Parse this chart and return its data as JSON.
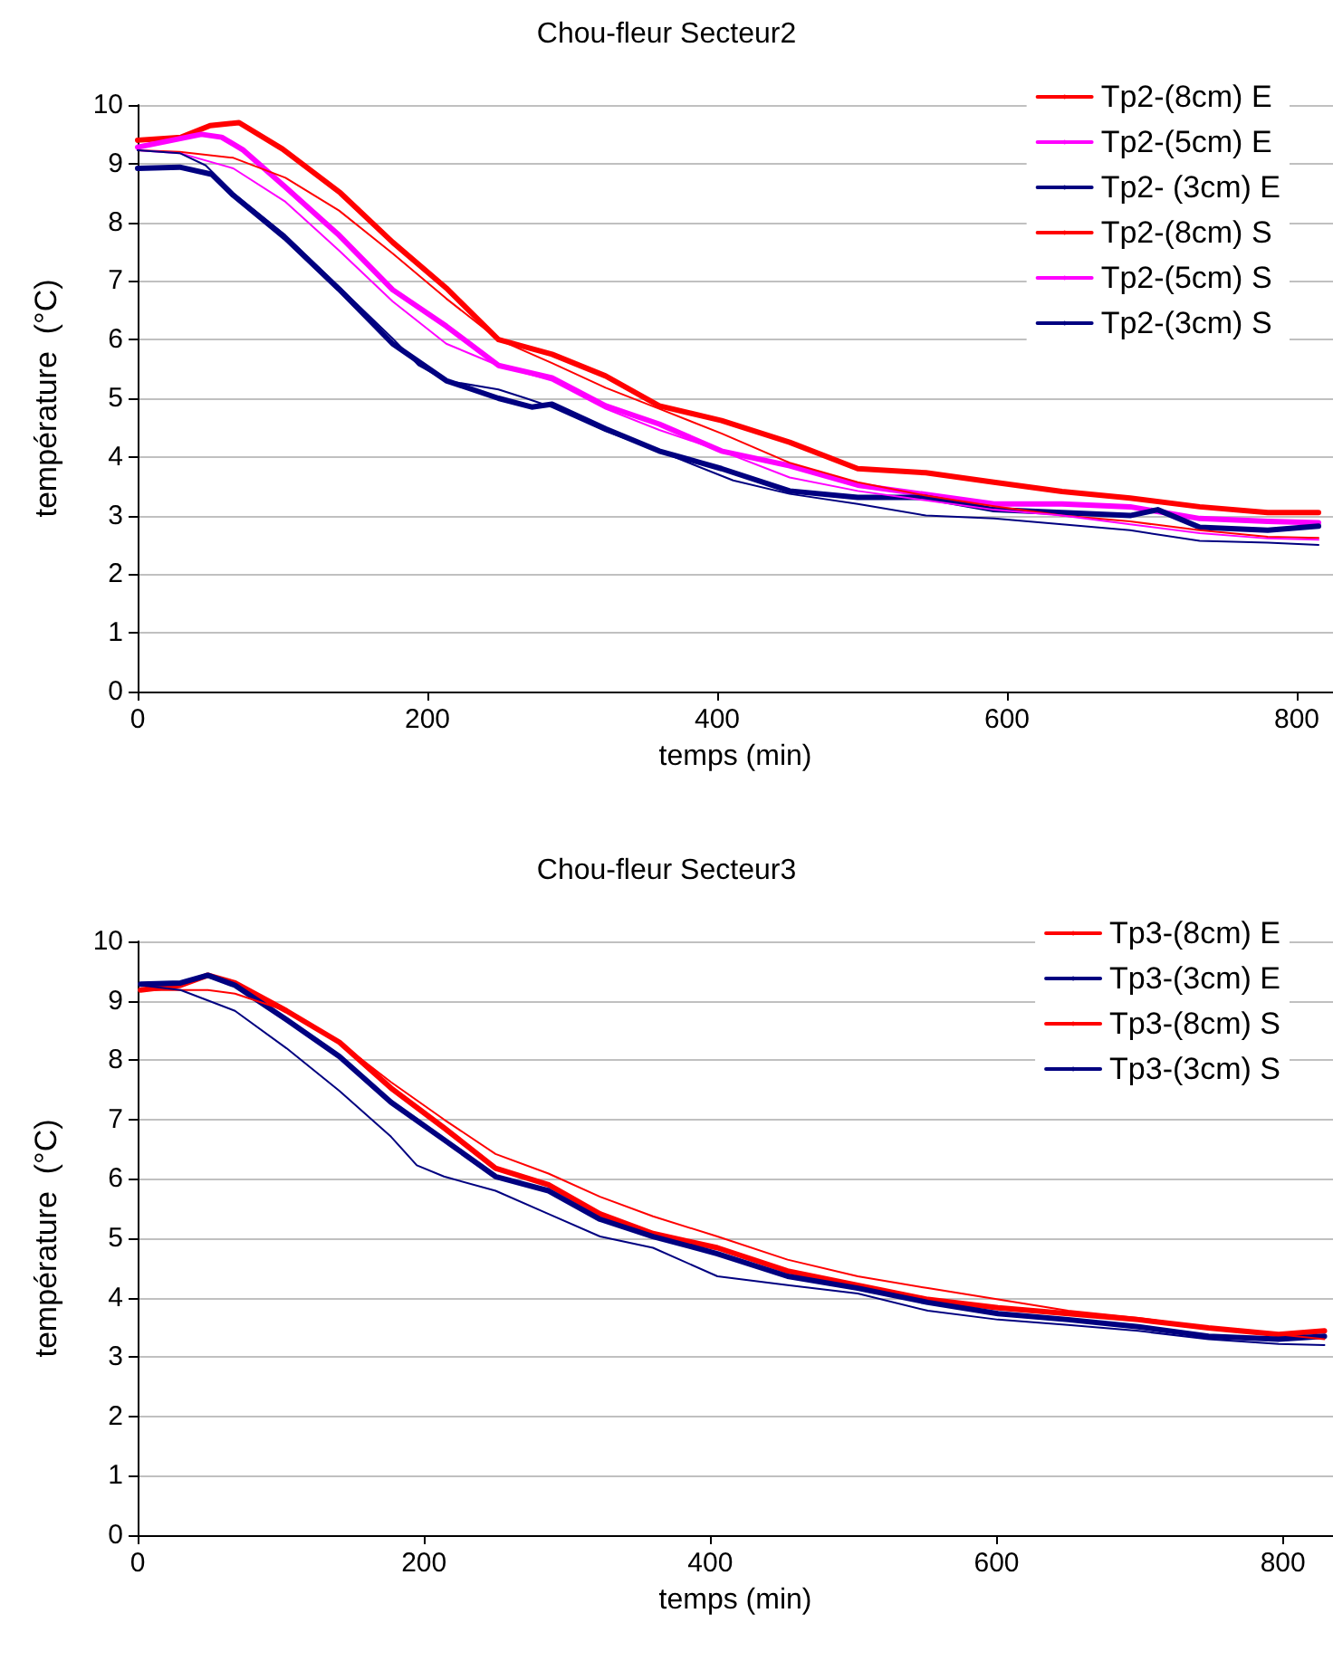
{
  "chart_data": [
    {
      "type": "line",
      "title": "Chou-fleur Secteur2",
      "xlabel": "temps (min)",
      "ylabel": "température  (°C)",
      "xlim": [
        0,
        825
      ],
      "xticks": [
        0,
        200,
        400,
        600,
        800
      ],
      "ylim": [
        0,
        10
      ],
      "yticks": [
        0,
        1,
        2,
        3,
        4,
        5,
        6,
        7,
        8,
        9,
        10
      ],
      "grid": "y",
      "legend": "top right",
      "marker": "none",
      "line_style": "solid",
      "series": [
        {
          "name": "Tp2-(8cm) E",
          "color": "#ff0000",
          "x": [
            0,
            30,
            50,
            70,
            100,
            140,
            176,
            213,
            249,
            286,
            323,
            360,
            403,
            450,
            497,
            544,
            591,
            638,
            685,
            733,
            780,
            815
          ],
          "values": [
            9.4,
            9.45,
            9.65,
            9.7,
            9.25,
            8.5,
            7.66,
            6.88,
            6.0,
            5.75,
            5.38,
            4.87,
            4.62,
            4.25,
            3.8,
            3.73,
            3.57,
            3.41,
            3.3,
            3.15,
            3.05,
            3.05
          ]
        },
        {
          "name": "Tp2-(5cm) E",
          "color": "#ff00ff",
          "x": [
            0,
            44,
            58,
            73,
            102,
            139,
            176,
            213,
            249,
            286,
            323,
            360,
            403,
            450,
            497,
            544,
            591,
            638,
            685,
            733,
            780,
            815
          ],
          "values": [
            9.28,
            9.5,
            9.45,
            9.23,
            8.6,
            7.78,
            6.85,
            6.23,
            5.56,
            5.35,
            4.87,
            4.56,
            4.1,
            3.85,
            3.52,
            3.36,
            3.2,
            3.2,
            3.15,
            2.95,
            2.9,
            2.88
          ]
        },
        {
          "name": "Tp2- (3cm) E",
          "color": "#000080",
          "x": [
            0,
            29,
            51,
            66,
            102,
            139,
            176,
            213,
            249,
            272,
            286,
            323,
            360,
            403,
            450,
            497,
            544,
            591,
            638,
            685,
            704,
            733,
            780,
            815
          ],
          "values": [
            8.92,
            8.94,
            8.82,
            8.46,
            7.73,
            6.86,
            5.93,
            5.3,
            5.0,
            4.85,
            4.9,
            4.48,
            4.1,
            3.8,
            3.42,
            3.31,
            3.31,
            3.1,
            3.05,
            3.0,
            3.1,
            2.8,
            2.75,
            2.82
          ]
        },
        {
          "name": "Tp2-(8cm) S",
          "color": "#ff0000",
          "x": [
            0,
            29,
            66,
            102,
            139,
            176,
            213,
            249,
            286,
            323,
            360,
            403,
            450,
            497,
            544,
            591,
            638,
            685,
            733,
            780,
            815
          ],
          "values": [
            9.23,
            9.2,
            9.1,
            8.76,
            8.2,
            7.47,
            6.7,
            6.0,
            5.6,
            5.18,
            4.82,
            4.4,
            3.9,
            3.57,
            3.34,
            3.16,
            3.0,
            2.9,
            2.75,
            2.64,
            2.62
          ]
        },
        {
          "name": "Tp2-(5cm) S",
          "color": "#ff00ff",
          "x": [
            0,
            29,
            66,
            102,
            139,
            176,
            213,
            249,
            286,
            323,
            360,
            403,
            450,
            497,
            544,
            591,
            638,
            685,
            733,
            780,
            815
          ],
          "values": [
            9.23,
            9.18,
            8.92,
            8.35,
            7.52,
            6.65,
            5.93,
            5.56,
            5.3,
            4.82,
            4.46,
            4.1,
            3.65,
            3.42,
            3.26,
            3.1,
            3.0,
            2.85,
            2.7,
            2.61,
            2.59
          ]
        },
        {
          "name": "Tp2-(3cm) S",
          "color": "#000080",
          "x": [
            0,
            29,
            47,
            66,
            102,
            139,
            176,
            194,
            213,
            249,
            268,
            286,
            323,
            360,
            411,
            450,
            497,
            544,
            591,
            638,
            685,
            733,
            780,
            815
          ],
          "values": [
            9.23,
            9.18,
            8.97,
            8.5,
            7.78,
            6.9,
            6.02,
            5.56,
            5.3,
            5.15,
            5.0,
            4.85,
            4.44,
            4.1,
            3.6,
            3.37,
            3.2,
            3.0,
            2.95,
            2.85,
            2.75,
            2.57,
            2.54,
            2.5
          ]
        }
      ]
    },
    {
      "type": "line",
      "title": "Chou-fleur Secteur3",
      "xlabel": "temps (min)",
      "ylabel": "température  (°C)",
      "xlim": [
        0,
        835
      ],
      "xticks": [
        0,
        200,
        400,
        600,
        800
      ],
      "ylim": [
        0,
        10
      ],
      "yticks": [
        0,
        1,
        2,
        3,
        4,
        5,
        6,
        7,
        8,
        9,
        10
      ],
      "grid": "y",
      "legend": "top right",
      "marker": "none",
      "line_style": "solid",
      "series": [
        {
          "name": "Tp3-(8cm) E",
          "color": "#ff0000",
          "x": [
            2,
            30,
            49,
            68,
            104,
            141,
            177,
            214,
            250,
            287,
            323,
            360,
            405,
            454,
            503,
            552,
            601,
            650,
            699,
            748,
            797,
            829
          ],
          "values": [
            9.18,
            9.26,
            9.43,
            9.3,
            8.83,
            8.3,
            7.53,
            6.86,
            6.18,
            5.9,
            5.41,
            5.08,
            4.84,
            4.45,
            4.21,
            3.97,
            3.83,
            3.73,
            3.63,
            3.49,
            3.38,
            3.44
          ]
        },
        {
          "name": "Tp3-(3cm) E",
          "color": "#000080",
          "x": [
            2,
            30,
            49,
            68,
            104,
            141,
            177,
            214,
            250,
            287,
            323,
            360,
            405,
            454,
            503,
            552,
            601,
            650,
            699,
            748,
            797,
            829
          ],
          "values": [
            9.28,
            9.3,
            9.43,
            9.26,
            8.68,
            8.06,
            7.29,
            6.66,
            6.04,
            5.8,
            5.32,
            5.03,
            4.74,
            4.36,
            4.16,
            3.92,
            3.73,
            3.63,
            3.51,
            3.35,
            3.3,
            3.35
          ]
        },
        {
          "name": "Tp3-(8cm) S",
          "color": "#ff0000",
          "x": [
            2,
            49,
            68,
            104,
            141,
            177,
            214,
            250,
            287,
            323,
            360,
            405,
            454,
            503,
            552,
            601,
            650,
            699,
            748,
            797,
            829
          ],
          "values": [
            9.18,
            9.18,
            9.12,
            8.83,
            8.3,
            7.63,
            7.0,
            6.42,
            6.09,
            5.7,
            5.37,
            5.03,
            4.64,
            4.36,
            4.16,
            3.97,
            3.78,
            3.66,
            3.49,
            3.38,
            3.3
          ]
        },
        {
          "name": "Tp3-(3cm) S",
          "color": "#000080",
          "x": [
            2,
            30,
            68,
            104,
            141,
            177,
            195,
            214,
            250,
            287,
            323,
            360,
            405,
            454,
            503,
            552,
            601,
            650,
            699,
            748,
            797,
            829
          ],
          "values": [
            9.26,
            9.18,
            8.83,
            8.2,
            7.48,
            6.71,
            6.23,
            6.04,
            5.8,
            5.41,
            5.03,
            4.84,
            4.36,
            4.21,
            4.07,
            3.78,
            3.63,
            3.54,
            3.44,
            3.3,
            3.22,
            3.2
          ]
        }
      ]
    }
  ]
}
